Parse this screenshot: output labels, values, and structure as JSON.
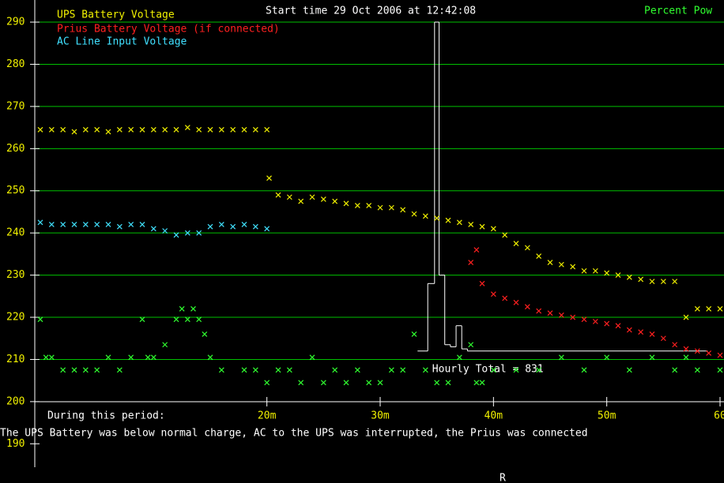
{
  "chart_data": {
    "type": "scatter",
    "title": "Start time 29 Oct 2006 at 12:42:08",
    "xlim": [
      0,
      60
    ],
    "ylim": [
      188,
      293
    ],
    "yticks": [
      190,
      200,
      210,
      220,
      230,
      240,
      250,
      260,
      270,
      280,
      290
    ],
    "xticks": [
      {
        "value": 20,
        "label": "20m"
      },
      {
        "value": 30,
        "label": "30m"
      },
      {
        "value": 40,
        "label": "40m"
      },
      {
        "value": 50,
        "label": "50m"
      },
      {
        "value": 60,
        "label": "60"
      }
    ],
    "grid": true,
    "grid_color": "#00c000",
    "period_label": "During this period:",
    "footnote": "The UPS Battery was below normal charge, AC to the UPS was interrupted, the Prius was connected",
    "cursor_label": "R",
    "series": [
      {
        "name": "UPS Battery Voltage",
        "color": "#f0f000",
        "x": [
          0,
          1,
          2,
          3,
          4,
          5,
          6,
          7,
          8,
          9,
          10,
          11,
          12,
          13,
          14,
          15,
          16,
          17,
          18,
          19,
          20,
          20.2,
          21,
          22,
          23,
          24,
          25,
          26,
          27,
          28,
          29,
          30,
          31,
          32,
          33,
          34,
          35,
          36,
          37,
          38,
          39,
          40,
          41,
          42,
          43,
          44,
          45,
          46,
          47,
          48,
          49,
          50,
          51,
          52,
          53,
          54,
          55,
          56,
          57,
          58,
          59,
          60
        ],
        "values": [
          264.5,
          264.5,
          264.5,
          264,
          264.5,
          264.5,
          264,
          264.5,
          264.5,
          264.5,
          264.5,
          264.5,
          264.5,
          265,
          264.5,
          264.5,
          264.5,
          264.5,
          264.5,
          264.5,
          264.5,
          253,
          249,
          248.5,
          247.5,
          248.5,
          248,
          247.5,
          247,
          246.5,
          246.5,
          246,
          246,
          245.5,
          244.5,
          244,
          243.5,
          243,
          242.5,
          242,
          241.5,
          241,
          239.5,
          237.5,
          236.5,
          234.5,
          233,
          232.5,
          232,
          231,
          231,
          230.5,
          230,
          229.5,
          229,
          228.5,
          228.5,
          228.5,
          220,
          222,
          222,
          222
        ]
      },
      {
        "name": "Prius Battery Voltage (if connected)",
        "color": "#ff2020",
        "x": [
          38,
          38.5,
          39,
          40,
          41,
          42,
          43,
          44,
          45,
          46,
          47,
          48,
          49,
          50,
          51,
          52,
          53,
          54,
          55,
          56,
          57,
          58,
          59,
          60
        ],
        "values": [
          233,
          236,
          228,
          225.5,
          224.5,
          223.5,
          222.5,
          221.5,
          221,
          220.5,
          220,
          219.5,
          219,
          218.5,
          218,
          217,
          216.5,
          216,
          215,
          213.5,
          212.5,
          212,
          211.5,
          211
        ]
      },
      {
        "name": "AC Line Input Voltage",
        "color": "#40e0ff",
        "x": [
          0,
          1,
          2,
          3,
          4,
          5,
          6,
          7,
          8,
          9,
          10,
          11,
          12,
          13,
          14,
          15,
          16,
          17,
          18,
          19,
          20
        ],
        "values": [
          242.5,
          242,
          242,
          242,
          242,
          242,
          242,
          241.5,
          242,
          242,
          241,
          240.5,
          239.5,
          240,
          240,
          241.5,
          242,
          241.5,
          242,
          241.5,
          241
        ]
      },
      {
        "name": "Percent Pow",
        "color": "#30ff30",
        "x": [
          0,
          0.5,
          1,
          2,
          3,
          4,
          5,
          6,
          7,
          8,
          9,
          9.5,
          10,
          11,
          12,
          12.5,
          13,
          13.5,
          14,
          14.5,
          15,
          16,
          18,
          19,
          20,
          21,
          22,
          23,
          24,
          25,
          26,
          27,
          28,
          29,
          30,
          31,
          32,
          33,
          34,
          35,
          36,
          37,
          38,
          38.5,
          39,
          40,
          42,
          44,
          46,
          48,
          50,
          52,
          54,
          56,
          57,
          58,
          60
        ],
        "values": [
          219.5,
          210.5,
          210.5,
          207.5,
          207.5,
          207.5,
          207.5,
          210.5,
          207.5,
          210.5,
          219.5,
          210.5,
          210.5,
          213.5,
          219.5,
          222,
          219.5,
          222,
          219.5,
          216,
          210.5,
          207.5,
          207.5,
          207.5,
          204.5,
          207.5,
          207.5,
          204.5,
          210.5,
          204.5,
          207.5,
          204.5,
          207.5,
          204.5,
          204.5,
          207.5,
          207.5,
          216,
          207.5,
          204.5,
          204.5,
          210.5,
          213.5,
          204.5,
          204.5,
          207.5,
          207.5,
          207.5,
          210.5,
          207.5,
          210.5,
          207.5,
          210.5,
          207.5,
          210.5,
          207.5,
          207.5
        ]
      }
    ],
    "histogram": {
      "name": "Hourly Total = 831",
      "color": "#ffffff",
      "bins": [
        33.3,
        34.2,
        34.8,
        35.2,
        35.7,
        36.2,
        36.7,
        37.2,
        37.7,
        58.9
      ],
      "counts": [
        212,
        228,
        290,
        230,
        213.5,
        213,
        218,
        212.5,
        212
      ]
    }
  }
}
